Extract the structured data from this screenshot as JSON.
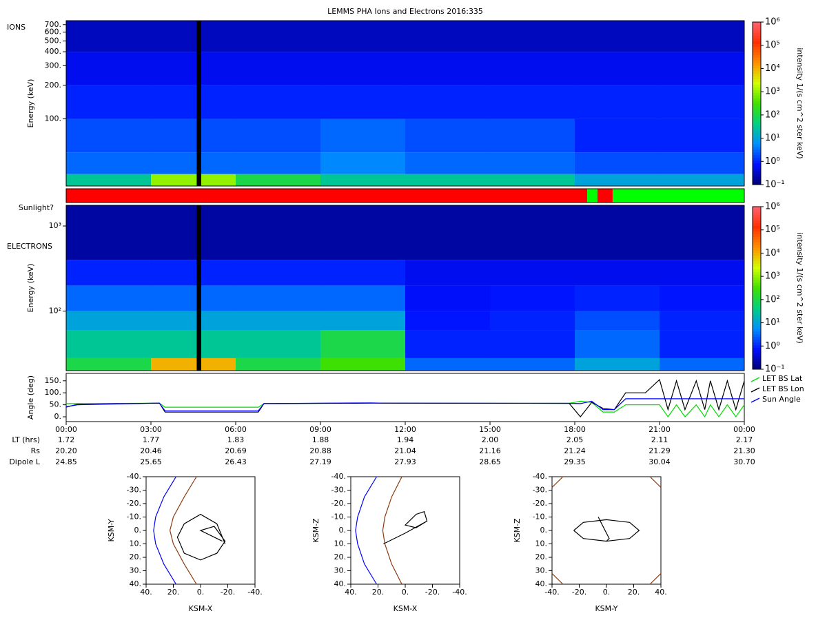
{
  "chart_data": [
    {
      "type": "heatmap",
      "title": "LEMMS PHA Ions and Electrons  2016:335",
      "panel_label": "IONS",
      "ylabel": "Energy (keV)",
      "zlabel": "intensity 1/(s cm^2 ster keV)",
      "ylog": true,
      "xlim": [
        0,
        24
      ],
      "ylim": [
        25,
        760
      ],
      "yticks": [
        {
          "value": 100,
          "label": "100."
        },
        {
          "value": 200,
          "label": "200."
        },
        {
          "value": 300,
          "label": "300."
        },
        {
          "value": 400,
          "label": "400."
        },
        {
          "value": 500,
          "label": "500."
        },
        {
          "value": 600,
          "label": "600."
        },
        {
          "value": 700,
          "label": "700."
        }
      ],
      "xbins": [
        0,
        3,
        6,
        9,
        12,
        15,
        18,
        21,
        24
      ],
      "ybins": [
        25,
        32,
        50,
        100,
        200,
        400,
        760
      ],
      "values": [
        [
          30,
          1000,
          100,
          30,
          30,
          30,
          10,
          10
        ],
        [
          3,
          3,
          3,
          5,
          3,
          3,
          2,
          2
        ],
        [
          2,
          2,
          2,
          3,
          2,
          2,
          1,
          1
        ],
        [
          1,
          1,
          1,
          1,
          1,
          1,
          1,
          1
        ],
        [
          0.6,
          0.6,
          0.6,
          0.6,
          0.6,
          0.6,
          0.6,
          0.6
        ],
        [
          0.3,
          0.3,
          0.3,
          0.3,
          0.3,
          0.3,
          0.3,
          0.3
        ]
      ],
      "data_gap": [
        4.62,
        4.78
      ],
      "zlim": [
        0.1,
        1000000
      ],
      "zticks": [
        {
          "value": 0.1,
          "label": "10⁻¹"
        },
        {
          "value": 1,
          "label": "10⁰"
        },
        {
          "value": 10,
          "label": "10¹"
        },
        {
          "value": 100,
          "label": "10²"
        },
        {
          "value": 1000,
          "label": "10³"
        },
        {
          "value": 10000,
          "label": "10⁴"
        },
        {
          "value": 100000,
          "label": "10⁵"
        },
        {
          "value": 1000000,
          "label": "10⁶"
        }
      ],
      "colors": [
        "#000070",
        "#0010ff",
        "#0090ff",
        "#00d080",
        "#40e000",
        "#d0ff00",
        "#ff9000",
        "#ff3000",
        "#ff6070"
      ]
    },
    {
      "type": "timeline",
      "label": "Sunlight?",
      "xlim": [
        0,
        24
      ],
      "segments": [
        {
          "start": 0,
          "end": 18.44,
          "color": "#ff0000"
        },
        {
          "start": 18.44,
          "end": 18.8,
          "color": "#00ff00"
        },
        {
          "start": 18.8,
          "end": 19.34,
          "color": "#ff0000"
        },
        {
          "start": 19.34,
          "end": 24,
          "color": "#00ff00"
        }
      ]
    },
    {
      "type": "heatmap",
      "panel_label": "ELECTRONS",
      "ylabel": "Energy (keV)",
      "zlabel": "intensity 1/(s cm^2 ster keV)",
      "ylog": true,
      "xlim": [
        0,
        24
      ],
      "ylim": [
        20,
        1750
      ],
      "yticks": [
        {
          "value": 100,
          "label": "10²"
        },
        {
          "value": 1000,
          "label": "10³"
        }
      ],
      "xbins": [
        0,
        3,
        6,
        9,
        12,
        15,
        18,
        21,
        24
      ],
      "ybins": [
        20,
        28,
        60,
        100,
        200,
        400,
        1750
      ],
      "values": [
        [
          100,
          10000,
          100,
          300,
          3,
          3,
          10,
          3
        ],
        [
          30,
          30,
          30,
          100,
          1,
          1,
          3,
          1
        ],
        [
          10,
          10,
          10,
          10,
          0.8,
          1,
          2,
          1
        ],
        [
          3,
          3,
          3,
          3,
          0.7,
          0.8,
          1,
          0.8
        ],
        [
          1,
          1,
          1,
          1,
          0.6,
          0.6,
          0.6,
          0.6
        ],
        [
          0.2,
          0.2,
          0.2,
          0.2,
          0.2,
          0.2,
          0.2,
          0.2
        ]
      ],
      "data_gap": [
        4.62,
        4.78
      ],
      "zlim": [
        0.1,
        1000000
      ],
      "zticks": [
        {
          "value": 0.1,
          "label": "10⁻¹"
        },
        {
          "value": 1,
          "label": "10⁰"
        },
        {
          "value": 10,
          "label": "10¹"
        },
        {
          "value": 100,
          "label": "10²"
        },
        {
          "value": 1000,
          "label": "10³"
        },
        {
          "value": 10000,
          "label": "10⁴"
        },
        {
          "value": 100000,
          "label": "10⁵"
        },
        {
          "value": 1000000,
          "label": "10⁶"
        }
      ],
      "colors": [
        "#000070",
        "#0010ff",
        "#0090ff",
        "#00d080",
        "#40e000",
        "#d0ff00",
        "#ff9000",
        "#ff3000",
        "#ff6070"
      ]
    },
    {
      "type": "line",
      "ylabel": "Angle (deg)",
      "xlim": [
        0,
        24
      ],
      "ylim": [
        -20,
        181
      ],
      "yticks": [
        {
          "value": 0,
          "label": "0."
        },
        {
          "value": 50,
          "label": "50."
        },
        {
          "value": 100,
          "label": "100."
        },
        {
          "value": 150,
          "label": "150."
        }
      ],
      "xticks": [
        {
          "value": 0,
          "label": "00:00"
        },
        {
          "value": 3,
          "label": "03:00"
        },
        {
          "value": 6,
          "label": "06:00"
        },
        {
          "value": 9,
          "label": "09:00"
        },
        {
          "value": 12,
          "label": "12:00"
        },
        {
          "value": 15,
          "label": "15:00"
        },
        {
          "value": 18,
          "label": "18:00"
        },
        {
          "value": 21,
          "label": "21:00"
        },
        {
          "value": 24,
          "label": "00:00"
        }
      ],
      "x": [
        0,
        0.4,
        3.3,
        3.5,
        6.8,
        7,
        10.8,
        11.2,
        17.8,
        18.2,
        18.6,
        19,
        19.4,
        19.8,
        20.5,
        21,
        21.3,
        21.6,
        21.9,
        22.3,
        22.6,
        22.8,
        23.1,
        23.4,
        23.7,
        24
      ],
      "series": [
        {
          "name": "LET BS Lat",
          "color": "#00dd00",
          "values": [
            55,
            55,
            57,
            40,
            40,
            55,
            57,
            57,
            56,
            65,
            60,
            20,
            20,
            50,
            50,
            50,
            0,
            50,
            0,
            50,
            0,
            50,
            0,
            50,
            0,
            50
          ]
        },
        {
          "name": "LET BS Lon",
          "color": "#000000",
          "values": [
            40,
            52,
            57,
            20,
            20,
            55,
            57,
            57,
            56,
            0,
            60,
            35,
            30,
            100,
            100,
            155,
            30,
            150,
            30,
            150,
            30,
            150,
            30,
            150,
            30,
            150
          ]
        },
        {
          "name": "Sun Angle",
          "color": "#0000ff",
          "values": [
            42,
            50,
            57,
            25,
            25,
            55,
            58,
            57,
            56,
            55,
            65,
            30,
            30,
            75,
            75,
            75,
            75,
            75,
            75,
            75,
            75,
            75,
            75,
            75,
            75,
            75
          ]
        }
      ],
      "info_rows": [
        {
          "label": "LT (hrs)",
          "values": [
            "1.72",
            "1.77",
            "1.83",
            "1.88",
            "1.94",
            "2.00",
            "2.05",
            "2.11",
            "2.17"
          ]
        },
        {
          "label": "Rs",
          "values": [
            "20.20",
            "20.46",
            "20.69",
            "20.88",
            "21.04",
            "21.16",
            "21.24",
            "21.29",
            "21.30"
          ]
        },
        {
          "label": "Dipole L",
          "values": [
            "24.85",
            "25.65",
            "26.43",
            "27.19",
            "27.93",
            "28.65",
            "29.35",
            "30.04",
            "30.70"
          ]
        }
      ]
    },
    {
      "type": "line",
      "xlabel": "KSM-X",
      "ylabel": "KSM-Y",
      "xlim": [
        40,
        -40
      ],
      "ylim": [
        40,
        -40
      ],
      "xticks": [
        {
          "value": 40,
          "label": "40."
        },
        {
          "value": 20,
          "label": "20."
        },
        {
          "value": 0,
          "label": "0."
        },
        {
          "value": -20,
          "label": "-20."
        },
        {
          "value": -40,
          "label": "-40."
        }
      ],
      "yticks": [
        {
          "value": -40,
          "label": "-40."
        },
        {
          "value": -30,
          "label": "-30."
        },
        {
          "value": -20,
          "label": "-20."
        },
        {
          "value": -10,
          "label": "-10."
        },
        {
          "value": 0,
          "label": "0."
        },
        {
          "value": 10,
          "label": "10."
        },
        {
          "value": 20,
          "label": "20."
        },
        {
          "value": 30,
          "label": "30."
        },
        {
          "value": 40,
          "label": "40."
        }
      ],
      "series": [
        {
          "color": "#0000ff",
          "x": [
            18,
            27,
            33,
            34.5,
            33,
            27,
            18
          ],
          "values": [
            -40,
            -25,
            -10,
            0,
            10,
            25,
            40
          ]
        },
        {
          "color": "#8b3a0f",
          "x": [
            3,
            12,
            20,
            22.5,
            20,
            12,
            3
          ],
          "values": [
            -40,
            -25,
            -10,
            0,
            10,
            25,
            40
          ]
        },
        {
          "color": "#000000",
          "x": [
            -18,
            -12,
            0,
            12,
            17,
            12,
            0,
            -12,
            -18,
            -10,
            0,
            -16
          ],
          "values": [
            10,
            -5,
            -12,
            -5,
            5,
            17,
            22,
            17,
            8,
            -3,
            0,
            8
          ]
        }
      ]
    },
    {
      "type": "line",
      "xlabel": "KSM-X",
      "ylabel": "KSM-Z",
      "xlim": [
        40,
        -40
      ],
      "ylim": [
        40,
        -40
      ],
      "xticks": [
        {
          "value": 40,
          "label": "40."
        },
        {
          "value": 20,
          "label": "20."
        },
        {
          "value": 0,
          "label": "0."
        },
        {
          "value": -20,
          "label": "-20."
        },
        {
          "value": -40,
          "label": "-40."
        }
      ],
      "yticks": [
        {
          "value": -40,
          "label": "-40."
        },
        {
          "value": -30,
          "label": "-30."
        },
        {
          "value": -20,
          "label": "-20."
        },
        {
          "value": -10,
          "label": "-10."
        },
        {
          "value": 0,
          "label": "0."
        },
        {
          "value": 10,
          "label": "10."
        },
        {
          "value": 20,
          "label": "20."
        },
        {
          "value": 30,
          "label": "30."
        },
        {
          "value": 40,
          "label": "40."
        }
      ],
      "series": [
        {
          "color": "#0000ff",
          "x": [
            21,
            30,
            35,
            36.5,
            35,
            30,
            21
          ],
          "values": [
            -40,
            -25,
            -10,
            0,
            10,
            25,
            40
          ]
        },
        {
          "color": "#8b3a0f",
          "x": [
            2.5,
            10,
            15,
            16.5,
            15,
            10,
            2.5
          ],
          "values": [
            -40,
            -25,
            -10,
            0,
            10,
            25,
            40
          ]
        },
        {
          "color": "#000000",
          "x": [
            16,
            0,
            -16,
            -14,
            -8,
            0,
            -8,
            -16
          ],
          "values": [
            10,
            2,
            -7,
            -14,
            -12,
            -4,
            -2,
            -7
          ]
        }
      ]
    },
    {
      "type": "line",
      "xlabel": "KSM-Y",
      "ylabel": "KSM-Z",
      "xlim": [
        -40,
        40
      ],
      "ylim": [
        40,
        -40
      ],
      "xticks": [
        {
          "value": -40,
          "label": "-40."
        },
        {
          "value": -20,
          "label": "-20."
        },
        {
          "value": 0,
          "label": "0."
        },
        {
          "value": 20,
          "label": "20."
        },
        {
          "value": 40,
          "label": "40."
        }
      ],
      "yticks": [
        {
          "value": -40,
          "label": "-40."
        },
        {
          "value": -30,
          "label": "-30."
        },
        {
          "value": -20,
          "label": "-20."
        },
        {
          "value": -10,
          "label": "-10."
        },
        {
          "value": 0,
          "label": "0."
        },
        {
          "value": 10,
          "label": "10."
        },
        {
          "value": 20,
          "label": "20."
        },
        {
          "value": 30,
          "label": "30."
        },
        {
          "value": 40,
          "label": "40."
        }
      ],
      "series": [
        {
          "color": "#8b3a0f",
          "x": [
            -40,
            -32,
            null,
            32,
            40,
            null,
            -40,
            -32,
            null,
            32,
            40
          ],
          "values": [
            -32,
            -40,
            null,
            -40,
            -32,
            null,
            32,
            40,
            null,
            40,
            32
          ]
        },
        {
          "color": "#000000",
          "x": [
            -24,
            -17,
            0,
            17,
            24,
            17,
            0,
            -17,
            -24
          ],
          "values": [
            0,
            -6,
            -8,
            -6,
            0,
            6,
            8,
            6,
            0
          ]
        },
        {
          "color": "#000000",
          "x": [
            -6,
            -2,
            2,
            0
          ],
          "values": [
            -10,
            -2,
            6,
            8
          ]
        }
      ]
    }
  ]
}
